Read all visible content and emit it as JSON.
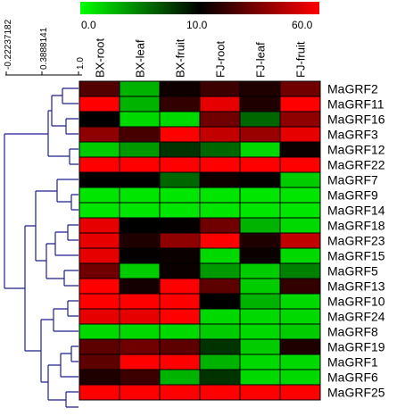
{
  "chart_data": {
    "type": "heatmap",
    "title": "",
    "color_scale": {
      "ticks": [
        "0.0",
        "10.0",
        "60.0"
      ],
      "colors": {
        "low": "#00ff00",
        "mid": "#000000",
        "high": "#ff0000"
      }
    },
    "dendrogram_scale": {
      "ticks": [
        "-0.22237182",
        "0.3888141",
        "1.0"
      ]
    },
    "columns": [
      "BX-root",
      "BX-leaf",
      "BX-fruit",
      "FJ-root",
      "FJ-leaf",
      "FJ-fruit"
    ],
    "rows": [
      "MaGRF2",
      "MaGRF11",
      "MaGRF16",
      "MaGRF3",
      "MaGRF12",
      "MaGRF22",
      "MaGRF7",
      "MaGRF9",
      "MaGRF14",
      "MaGRF18",
      "MaGRF23",
      "MaGRF15",
      "MaGRF5",
      "MaGRF13",
      "MaGRF10",
      "MaGRF24",
      "MaGRF8",
      "MaGRF19",
      "MaGRF1",
      "MaGRF6",
      "MaGRF25"
    ],
    "values": [
      [
        26,
        3,
        13,
        22,
        16,
        32
      ],
      [
        60,
        3,
        20,
        55,
        16,
        60
      ],
      [
        10,
        1.5,
        1.5,
        32,
        6,
        38
      ],
      [
        38,
        24,
        60,
        48,
        40,
        55
      ],
      [
        2,
        4,
        8,
        6,
        1.5,
        12
      ],
      [
        60,
        60,
        60,
        60,
        60,
        60
      ],
      [
        10,
        10,
        6,
        13,
        11,
        2
      ],
      [
        1,
        1,
        1,
        1,
        1,
        1
      ],
      [
        1,
        1,
        1,
        1,
        1,
        1
      ],
      [
        55,
        10,
        11,
        32,
        3,
        1.5
      ],
      [
        55,
        16,
        38,
        60,
        16,
        48
      ],
      [
        55,
        11,
        12,
        1.5,
        12,
        1.5
      ],
      [
        32,
        2,
        12,
        4,
        2,
        5
      ],
      [
        60,
        14,
        60,
        28,
        2,
        20
      ],
      [
        60,
        60,
        60,
        10,
        3,
        1.5
      ],
      [
        55,
        55,
        60,
        1.5,
        1.5,
        1.5
      ],
      [
        1.5,
        1.5,
        1.5,
        2,
        1.5,
        2
      ],
      [
        28,
        32,
        28,
        8,
        2,
        16
      ],
      [
        28,
        60,
        60,
        3,
        1.5,
        1.5
      ],
      [
        16,
        22,
        3,
        8,
        1.5,
        1.5
      ],
      [
        60,
        60,
        60,
        60,
        60,
        60
      ]
    ]
  }
}
